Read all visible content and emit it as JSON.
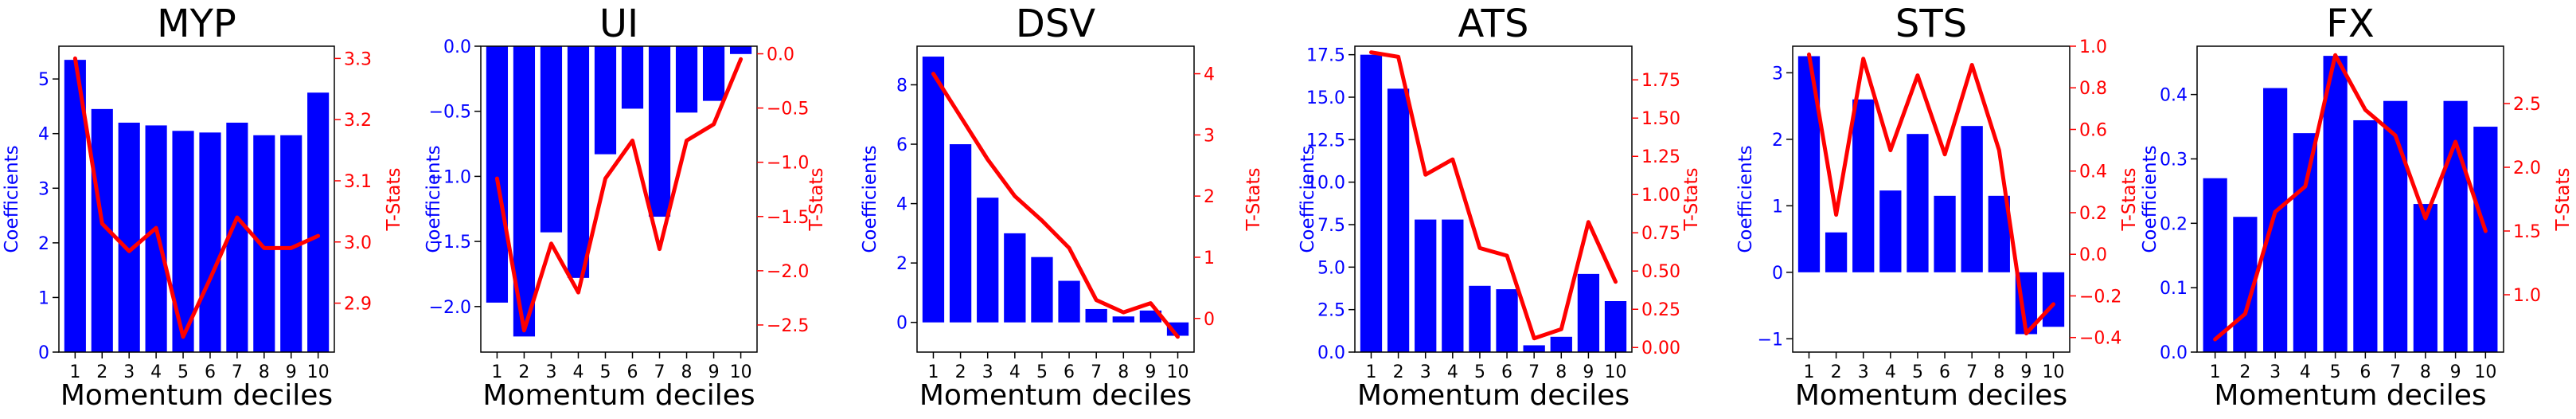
{
  "colors": {
    "bars": "#0000ff",
    "line": "#ff0000",
    "axis": "#000000"
  },
  "chart_data": [
    {
      "type": "bar",
      "title": "MYP",
      "xlabel": "Momentum deciles",
      "ylabel": "Coefficients",
      "y2label": "T-Stats",
      "categories": [
        "1",
        "2",
        "3",
        "4",
        "5",
        "6",
        "7",
        "8",
        "9",
        "10"
      ],
      "ylim": [
        0,
        5.6
      ],
      "yticks": [
        0,
        1,
        2,
        3,
        4,
        5
      ],
      "y2lim": [
        2.82,
        3.32
      ],
      "y2ticks": [
        2.9,
        3.0,
        3.1,
        3.2,
        3.3
      ],
      "y2tick_labels": [
        "2.9",
        "3.0",
        "3.1",
        "3.2",
        "3.3"
      ],
      "series": [
        {
          "kind": "bar",
          "values": [
            5.35,
            4.45,
            4.2,
            4.15,
            4.05,
            4.02,
            4.2,
            3.97,
            3.97,
            4.75
          ]
        },
        {
          "kind": "line",
          "axis": "right",
          "values": [
            3.3,
            3.03,
            2.985,
            3.023,
            2.845,
            2.94,
            3.04,
            2.99,
            2.99,
            3.01
          ]
        }
      ]
    },
    {
      "type": "bar",
      "title": "UI",
      "xlabel": "Momentum deciles",
      "ylabel": "Coefficients",
      "y2label": "T-Stats",
      "categories": [
        "1",
        "2",
        "3",
        "4",
        "5",
        "6",
        "7",
        "8",
        "9",
        "10"
      ],
      "ylim": [
        -2.35,
        0.0
      ],
      "yticks": [
        -2.0,
        -1.5,
        -1.0,
        -0.5,
        0.0
      ],
      "ytick_labels": [
        "−2.0",
        "−1.5",
        "−1.0",
        "−0.5",
        "0.0"
      ],
      "y2lim": [
        -2.75,
        0.07
      ],
      "y2ticks": [
        -2.5,
        -2.0,
        -1.5,
        -1.0,
        -0.5,
        0.0
      ],
      "y2tick_labels": [
        "−2.5",
        "−2.0",
        "−1.5",
        "−1.0",
        "−0.5",
        "0.0"
      ],
      "series": [
        {
          "kind": "bar",
          "values": [
            -1.97,
            -2.23,
            -1.43,
            -1.78,
            -0.83,
            -0.48,
            -1.31,
            -0.51,
            -0.42,
            -0.06
          ]
        },
        {
          "kind": "line",
          "axis": "right",
          "values": [
            -1.15,
            -2.55,
            -1.75,
            -2.2,
            -1.15,
            -0.8,
            -1.8,
            -0.8,
            -0.65,
            -0.05
          ]
        }
      ]
    },
    {
      "type": "bar",
      "title": "DSV",
      "xlabel": "Momentum deciles",
      "ylabel": "Coefficients",
      "y2label": "T-Stats",
      "categories": [
        "1",
        "2",
        "3",
        "4",
        "5",
        "6",
        "7",
        "8",
        "9",
        "10"
      ],
      "ylim": [
        -1.0,
        9.3
      ],
      "yticks": [
        0,
        2,
        4,
        6,
        8
      ],
      "y2lim": [
        -0.55,
        4.45
      ],
      "y2ticks": [
        0,
        1,
        2,
        3,
        4
      ],
      "series": [
        {
          "kind": "bar",
          "values": [
            8.95,
            6.0,
            4.2,
            3.0,
            2.2,
            1.4,
            0.45,
            0.2,
            0.4,
            -0.45
          ]
        },
        {
          "kind": "line",
          "axis": "right",
          "values": [
            4.0,
            3.3,
            2.6,
            2.0,
            1.6,
            1.15,
            0.3,
            0.1,
            0.25,
            -0.3
          ]
        }
      ]
    },
    {
      "type": "bar",
      "title": "ATS",
      "xlabel": "Momentum deciles",
      "ylabel": "Coefficients",
      "y2label": "T-Stats",
      "categories": [
        "1",
        "2",
        "3",
        "4",
        "5",
        "6",
        "7",
        "8",
        "9",
        "10"
      ],
      "ylim": [
        0,
        18.0
      ],
      "yticks": [
        0.0,
        2.5,
        5.0,
        7.5,
        10.0,
        12.5,
        15.0,
        17.5
      ],
      "ytick_labels": [
        "0.0",
        "2.5",
        "5.0",
        "7.5",
        "10.0",
        "12.5",
        "15.0",
        "17.5"
      ],
      "y2lim": [
        -0.03,
        1.97
      ],
      "y2ticks": [
        0.0,
        0.25,
        0.5,
        0.75,
        1.0,
        1.25,
        1.5,
        1.75
      ],
      "y2tick_labels": [
        "0.00",
        "0.25",
        "0.50",
        "0.75",
        "1.00",
        "1.25",
        "1.50",
        "1.75"
      ],
      "series": [
        {
          "kind": "bar",
          "values": [
            17.5,
            15.5,
            7.8,
            7.8,
            3.9,
            3.7,
            0.4,
            0.9,
            4.6,
            3.0
          ]
        },
        {
          "kind": "line",
          "axis": "right",
          "values": [
            1.93,
            1.9,
            1.13,
            1.23,
            0.65,
            0.6,
            0.06,
            0.12,
            0.82,
            0.43
          ]
        }
      ]
    },
    {
      "type": "bar",
      "title": "STS",
      "xlabel": "Momentum deciles",
      "ylabel": "Coefficients",
      "y2label": "T-Stats",
      "categories": [
        "1",
        "2",
        "3",
        "4",
        "5",
        "6",
        "7",
        "8",
        "9",
        "10"
      ],
      "ylim": [
        -1.2,
        3.4
      ],
      "yticks": [
        -1,
        0,
        1,
        2,
        3
      ],
      "ytick_labels": [
        "−1",
        "0",
        "1",
        "2",
        "3"
      ],
      "y2lim": [
        -0.47,
        1.0
      ],
      "y2ticks": [
        -0.4,
        -0.2,
        0.0,
        0.2,
        0.4,
        0.6,
        0.8,
        1.0
      ],
      "y2tick_labels": [
        "−0.4",
        "−0.2",
        "0.0",
        "0.2",
        "0.4",
        "0.6",
        "0.8",
        "1.0"
      ],
      "series": [
        {
          "kind": "bar",
          "values": [
            3.25,
            0.6,
            2.6,
            1.23,
            2.08,
            1.15,
            2.2,
            1.15,
            -0.93,
            -0.82
          ]
        },
        {
          "kind": "line",
          "axis": "right",
          "values": [
            0.96,
            0.19,
            0.94,
            0.5,
            0.86,
            0.48,
            0.91,
            0.5,
            -0.38,
            -0.24
          ]
        }
      ]
    },
    {
      "type": "bar",
      "title": "FX",
      "xlabel": "Momentum deciles",
      "ylabel": "Coefficients",
      "y2label": "T-Stats",
      "categories": [
        "1",
        "2",
        "3",
        "4",
        "5",
        "6",
        "7",
        "8",
        "9",
        "10"
      ],
      "ylim": [
        0,
        0.475
      ],
      "yticks": [
        0.0,
        0.1,
        0.2,
        0.3,
        0.4
      ],
      "ytick_labels": [
        "0.0",
        "0.1",
        "0.2",
        "0.3",
        "0.4"
      ],
      "y2lim": [
        0.55,
        2.95
      ],
      "y2ticks": [
        1.0,
        1.5,
        2.0,
        2.5
      ],
      "y2tick_labels": [
        "1.0",
        "1.5",
        "2.0",
        "2.5"
      ],
      "series": [
        {
          "kind": "bar",
          "values": [
            0.27,
            0.21,
            0.41,
            0.34,
            0.46,
            0.36,
            0.39,
            0.23,
            0.39,
            0.35
          ]
        },
        {
          "kind": "line",
          "axis": "right",
          "values": [
            0.65,
            0.85,
            1.65,
            1.85,
            2.88,
            2.45,
            2.25,
            1.6,
            2.2,
            1.5
          ]
        }
      ]
    }
  ]
}
